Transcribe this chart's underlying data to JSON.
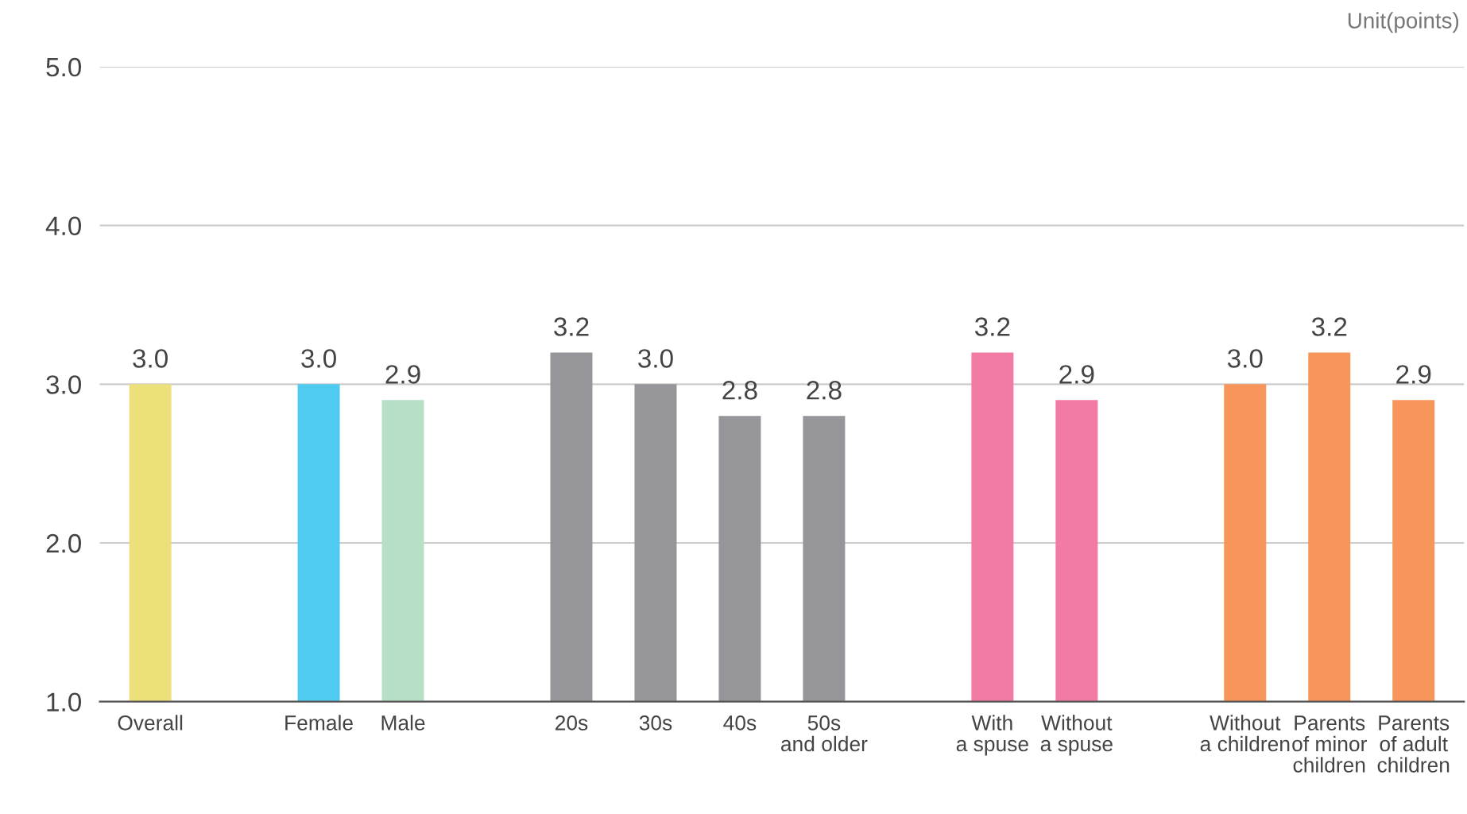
{
  "chart_data": {
    "type": "bar",
    "categories": [
      "Overall",
      null,
      "Female",
      "Male",
      null,
      "20s",
      "30s",
      "40s",
      "50s\nand older",
      null,
      "With\na spuse",
      "Without\na spuse",
      null,
      "Without\na children",
      "Parents\nof minor\nchildren",
      "Parents\nof adult\nchildren"
    ],
    "values": [
      3.0,
      null,
      3.0,
      2.9,
      null,
      3.2,
      3.0,
      2.8,
      2.8,
      null,
      3.2,
      2.9,
      null,
      3.0,
      3.2,
      2.9
    ],
    "colors": [
      "#ebe07a",
      null,
      "#4fcbf2",
      "#b6dfc6",
      null,
      "#96969a",
      "#96969a",
      "#96969a",
      "#96969a",
      null,
      "#f27ba5",
      "#f27ba5",
      null,
      "#f7955a",
      "#f7955a",
      "#f7955a"
    ],
    "ylim": [
      1.0,
      5.0
    ],
    "yticks": [
      {
        "value": 1.0,
        "label": "1.0"
      },
      {
        "value": 2.0,
        "label": "2.0"
      },
      {
        "value": 3.0,
        "label": "3.0"
      },
      {
        "value": 4.0,
        "label": "4.0"
      },
      {
        "value": 5.0,
        "label": "5.0"
      }
    ],
    "grid": "y",
    "value_labels": [
      "3.0",
      null,
      "3.0",
      "2.9",
      null,
      "3.2",
      "3.0",
      "2.8",
      "2.8",
      null,
      "3.2",
      "2.9",
      null,
      "3.0",
      "3.2",
      "2.9"
    ],
    "annotations": [
      "Unit(points)"
    ]
  }
}
